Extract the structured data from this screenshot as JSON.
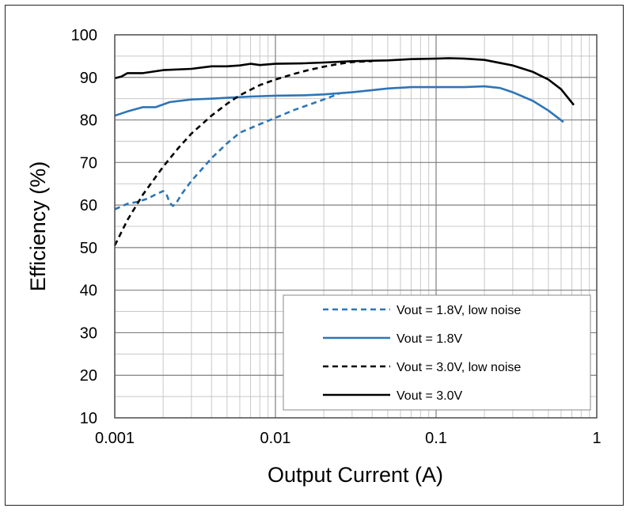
{
  "chart_data": {
    "type": "line",
    "title": "",
    "xlabel": "Output Current (A)",
    "ylabel": "Efficiency (%)",
    "xscale": "log",
    "xlim": [
      0.001,
      1
    ],
    "ylim": [
      10,
      100
    ],
    "x_ticks": [
      0.001,
      0.01,
      0.1,
      1
    ],
    "x_tick_labels": [
      "0.001",
      "0.01",
      "0.1",
      "1"
    ],
    "y_ticks": [
      10,
      20,
      30,
      40,
      50,
      60,
      70,
      80,
      90,
      100
    ],
    "y_tick_labels": [
      "10",
      "20",
      "30",
      "40",
      "50",
      "60",
      "70",
      "80",
      "90",
      "100"
    ],
    "grid": true,
    "legend_position": "bottom-right",
    "series": [
      {
        "name": "Vout = 1.8V, low noise",
        "color": "#2e75b6",
        "style": "dashed",
        "x": [
          0.001,
          0.0012,
          0.0014,
          0.0016,
          0.0018,
          0.002,
          0.0021,
          0.0022,
          0.0023,
          0.0024,
          0.0026,
          0.003,
          0.0035,
          0.004,
          0.005,
          0.006,
          0.008,
          0.01,
          0.013,
          0.016,
          0.02,
          0.025
        ],
        "y": [
          59,
          60.3,
          60.8,
          61.5,
          62.5,
          63.3,
          62.5,
          60.5,
          59.8,
          60.3,
          62.5,
          65.7,
          68.5,
          71,
          74.5,
          77,
          79,
          80.5,
          82.3,
          83.5,
          84.8,
          86.2
        ]
      },
      {
        "name": "Vout = 1.8V",
        "color": "#2e75b6",
        "style": "solid",
        "x": [
          0.001,
          0.0012,
          0.0015,
          0.0018,
          0.0022,
          0.003,
          0.004,
          0.005,
          0.007,
          0.01,
          0.015,
          0.02,
          0.03,
          0.04,
          0.05,
          0.07,
          0.1,
          0.15,
          0.2,
          0.25,
          0.3,
          0.4,
          0.5,
          0.62
        ],
        "y": [
          81,
          82,
          83,
          83,
          84.2,
          84.8,
          85,
          85.2,
          85.5,
          85.7,
          85.8,
          86,
          86.5,
          87,
          87.4,
          87.7,
          87.7,
          87.7,
          87.9,
          87.5,
          86.5,
          84.5,
          82.2,
          79.5
        ]
      },
      {
        "name": "Vout = 3.0V, low noise",
        "color": "#000000",
        "style": "dashed",
        "x": [
          0.001,
          0.0012,
          0.0015,
          0.002,
          0.0025,
          0.003,
          0.004,
          0.005,
          0.006,
          0.008,
          0.01,
          0.013,
          0.016,
          0.02,
          0.025,
          0.03,
          0.04
        ],
        "y": [
          50.5,
          56.5,
          62.5,
          69,
          73.5,
          76.8,
          81,
          83.8,
          85.8,
          88.2,
          89.5,
          90.8,
          91.7,
          92.5,
          93.2,
          93.6,
          93.8
        ]
      },
      {
        "name": "Vout = 3.0V",
        "color": "#000000",
        "style": "solid",
        "x": [
          0.001,
          0.0011,
          0.0012,
          0.0015,
          0.002,
          0.003,
          0.004,
          0.005,
          0.006,
          0.007,
          0.008,
          0.01,
          0.015,
          0.02,
          0.03,
          0.05,
          0.07,
          0.1,
          0.12,
          0.15,
          0.2,
          0.3,
          0.4,
          0.5,
          0.6,
          0.72
        ],
        "y": [
          89.8,
          90.2,
          91,
          91,
          91.7,
          92,
          92.6,
          92.6,
          92.8,
          93.2,
          92.9,
          93.2,
          93.3,
          93.5,
          93.8,
          94,
          94.3,
          94.4,
          94.5,
          94.4,
          94.1,
          92.8,
          91.3,
          89.5,
          87.2,
          83.5
        ]
      }
    ]
  }
}
